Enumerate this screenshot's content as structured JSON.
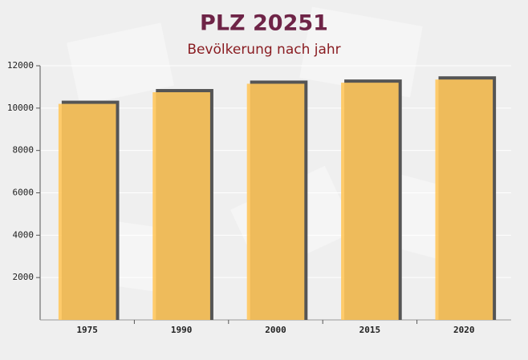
{
  "chart_data": {
    "type": "bar",
    "title": "PLZ 20251",
    "subtitle": "Bevölkerung nach jahr",
    "categories": [
      "1975",
      "1990",
      "2000",
      "2015",
      "2020"
    ],
    "values": [
      10200,
      10750,
      11150,
      11200,
      11350
    ],
    "color": "#ffc65c",
    "ylim": [
      0,
      12000
    ],
    "yticks": [
      2000,
      4000,
      6000,
      8000,
      10000,
      12000
    ],
    "grid": true
  }
}
